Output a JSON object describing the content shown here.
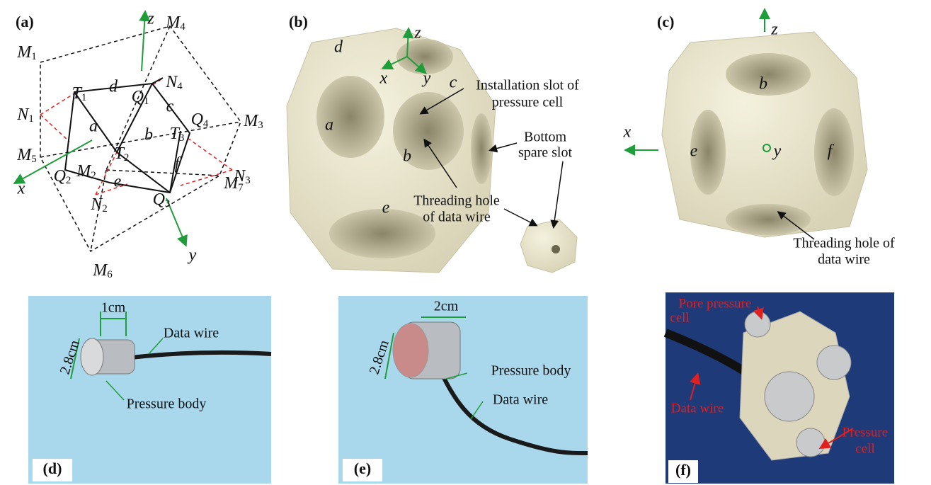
{
  "panels": {
    "a": {
      "label": "(a)",
      "points": [
        {
          "base": "M",
          "sub": "1"
        },
        {
          "base": "M",
          "sub": "4"
        },
        {
          "base": "M",
          "sub": "3"
        },
        {
          "base": "M",
          "sub": "5"
        },
        {
          "base": "M",
          "sub": "2"
        },
        {
          "base": "M",
          "sub": "6"
        },
        {
          "base": "M",
          "sub": "7"
        },
        {
          "base": "N",
          "sub": "1"
        },
        {
          "base": "N",
          "sub": "4"
        },
        {
          "base": "N",
          "sub": "3"
        },
        {
          "base": "N",
          "sub": "2"
        },
        {
          "base": "T",
          "sub": "1"
        },
        {
          "base": "Q",
          "sub": "1"
        },
        {
          "base": "Q",
          "sub": "4"
        },
        {
          "base": "T",
          "sub": "3"
        },
        {
          "base": "T",
          "sub": "2"
        },
        {
          "base": "Q",
          "sub": "2"
        },
        {
          "base": "Q",
          "sub": "3"
        }
      ],
      "faces": [
        "a",
        "b",
        "c",
        "d",
        "e",
        "f"
      ],
      "axes": [
        "x",
        "y",
        "z"
      ]
    },
    "b": {
      "label": "(b)",
      "faces": [
        "d",
        "c",
        "a",
        "b",
        "e"
      ],
      "axes": [
        "z",
        "x",
        "y"
      ],
      "annotations": [
        [
          "Installation slot of",
          "pressure cell"
        ],
        [
          "Bottom",
          "spare slot"
        ],
        [
          "Threading hole",
          "of data wire"
        ]
      ]
    },
    "c": {
      "label": "(c)",
      "faces": [
        "b",
        "e",
        "f"
      ],
      "axes": [
        "z",
        "x",
        "y"
      ],
      "annotations": [
        [
          "Threading hole of",
          "data wire"
        ]
      ]
    },
    "d": {
      "label": "(d)",
      "dimensions": [
        "1cm",
        "2.8cm"
      ],
      "annotations": [
        "Data wire",
        "Pressure body"
      ]
    },
    "e": {
      "label": "(e)",
      "dimensions": [
        "2cm",
        "2.8cm"
      ],
      "annotations": [
        "Pressure body",
        "Data wire"
      ]
    },
    "f": {
      "label": "(f)",
      "annotations": [
        [
          "Pore pressure",
          "cell"
        ],
        [
          "Data wire"
        ],
        [
          "Pressure",
          "cell"
        ]
      ]
    }
  }
}
